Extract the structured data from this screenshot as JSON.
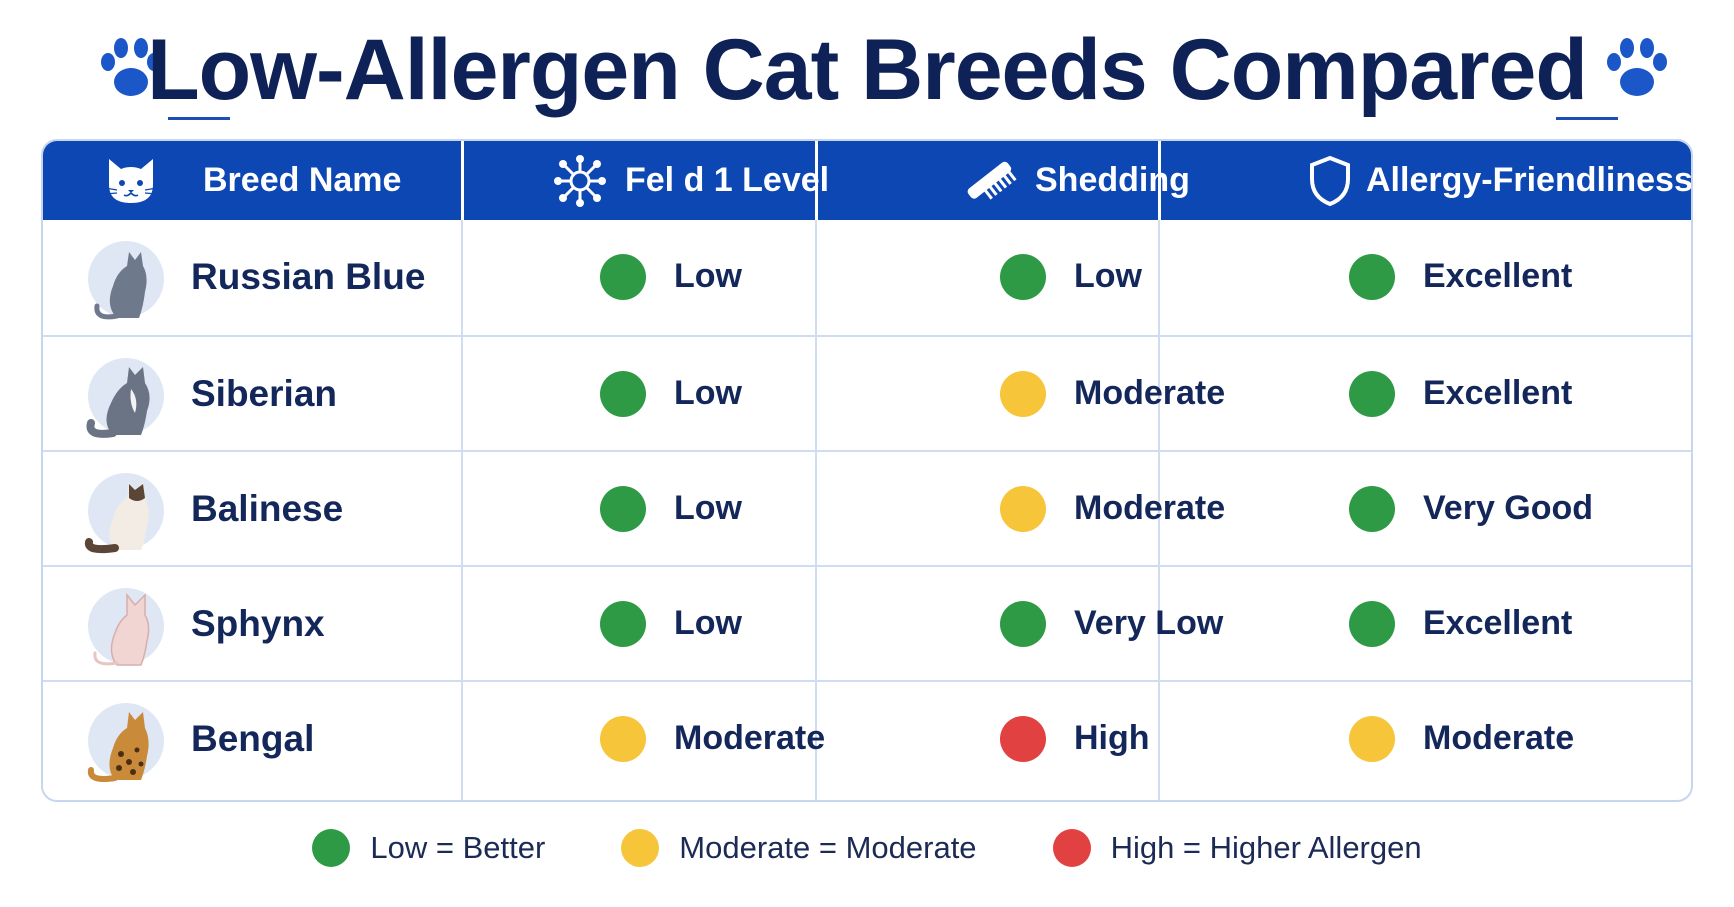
{
  "title": "Low-Allergen Cat Breeds Compared",
  "colors": {
    "header_bg": "#0d47b3",
    "low": "#2f9a45",
    "moderate": "#f6c53a",
    "high": "#e24141",
    "title": "#0f2257",
    "paw": "#1b57c9"
  },
  "columns": [
    {
      "label": "Breed Name",
      "icon": "cat-face-icon"
    },
    {
      "label": "Fel d 1 Level",
      "icon": "allergen-molecule-icon"
    },
    {
      "label": "Shedding",
      "icon": "comb-icon"
    },
    {
      "label": "Allergy-Friendliness",
      "icon": "shield-icon"
    }
  ],
  "rows": [
    {
      "breed": "Russian Blue",
      "avatar": "russian-blue-cat-icon",
      "fel_d1": {
        "text": "Low",
        "level": "low"
      },
      "shedding": {
        "text": "Low",
        "level": "low"
      },
      "friendliness": {
        "text": "Excellent",
        "level": "low"
      }
    },
    {
      "breed": "Siberian",
      "avatar": "siberian-cat-icon",
      "fel_d1": {
        "text": "Low",
        "level": "low"
      },
      "shedding": {
        "text": "Moderate",
        "level": "moderate"
      },
      "friendliness": {
        "text": "Excellent",
        "level": "low"
      }
    },
    {
      "breed": "Balinese",
      "avatar": "balinese-cat-icon",
      "fel_d1": {
        "text": "Low",
        "level": "low"
      },
      "shedding": {
        "text": "Moderate",
        "level": "moderate"
      },
      "friendliness": {
        "text": "Very Good",
        "level": "low"
      }
    },
    {
      "breed": "Sphynx",
      "avatar": "sphynx-cat-icon",
      "fel_d1": {
        "text": "Low",
        "level": "low"
      },
      "shedding": {
        "text": "Very Low",
        "level": "low"
      },
      "friendliness": {
        "text": "Excellent",
        "level": "low"
      }
    },
    {
      "breed": "Bengal",
      "avatar": "bengal-cat-icon",
      "fel_d1": {
        "text": "Moderate",
        "level": "moderate"
      },
      "shedding": {
        "text": "High",
        "level": "high"
      },
      "friendliness": {
        "text": "Moderate",
        "level": "moderate"
      }
    }
  ],
  "legend": [
    {
      "text": "Low = Better",
      "level": "low"
    },
    {
      "text": "Moderate = Moderate",
      "level": "moderate"
    },
    {
      "text": "High = Higher Allergen",
      "level": "high"
    }
  ]
}
